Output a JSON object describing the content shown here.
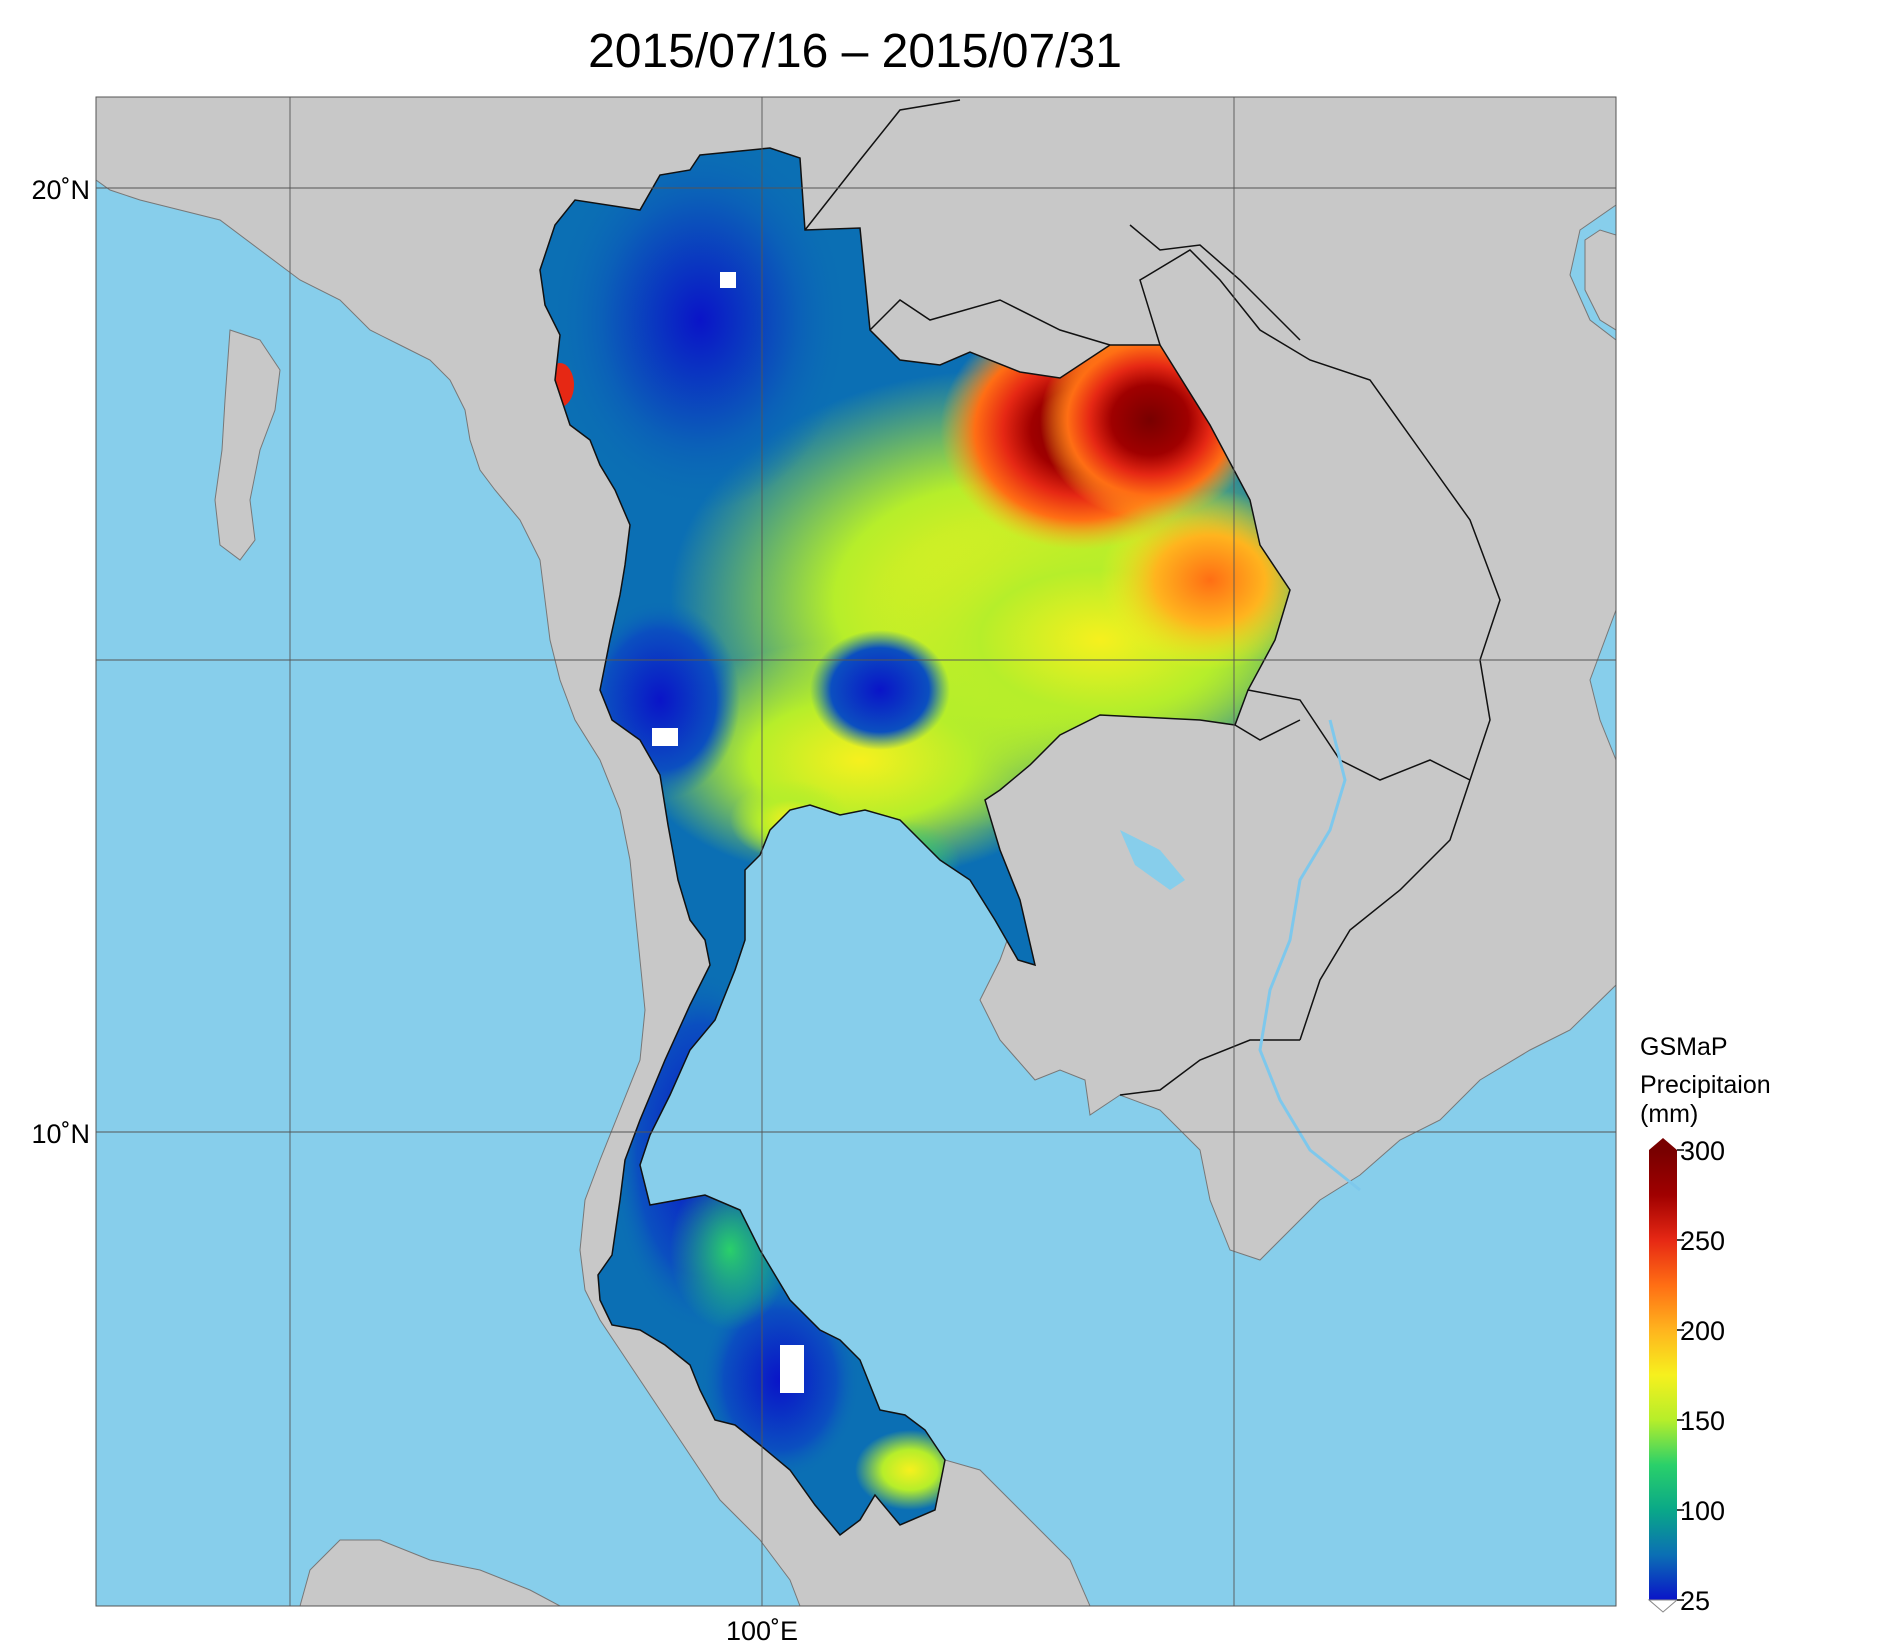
{
  "title": "2015/07/16 – 2015/07/31",
  "map": {
    "lat_labels": [
      "20˚N",
      "10˚N"
    ],
    "lon_labels": [
      "100˚E"
    ],
    "colors": {
      "ocean": "#87ceeb",
      "land": "#c8c8c8",
      "border": "#111111",
      "province": "#9a9a9a",
      "grid": "#555555"
    }
  },
  "legend": {
    "title_line1": "GSMaP",
    "title_line2": "Precipitaion",
    "title_line3": "(mm)",
    "ticks": [
      "300",
      "250",
      "200",
      "150",
      "100",
      "25"
    ],
    "colors": [
      "#0a14c8",
      "#0b6fb4",
      "#0aa888",
      "#2ad06a",
      "#b6ee2a",
      "#f6f01e",
      "#ffb41e",
      "#ff6e14",
      "#e62814",
      "#a00000",
      "#780000"
    ]
  }
}
